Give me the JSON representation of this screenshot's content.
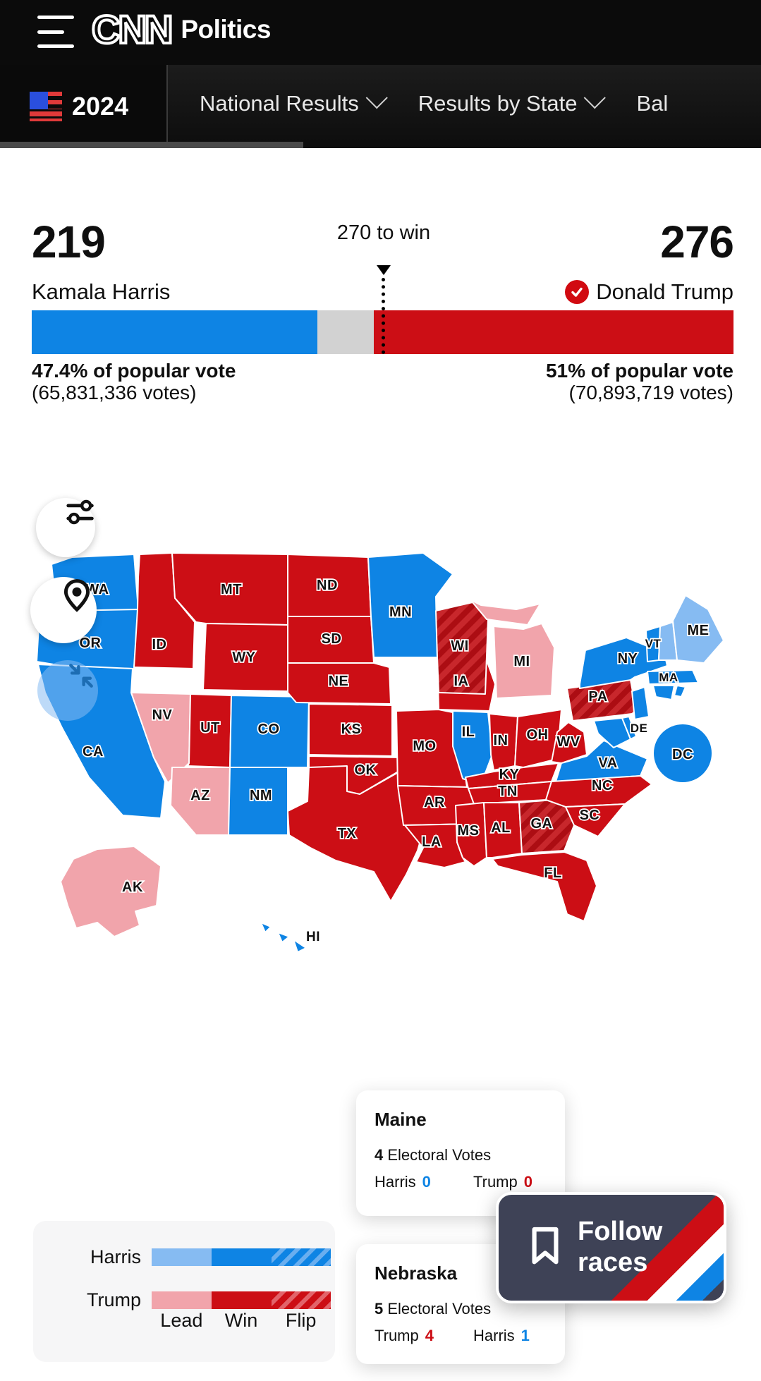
{
  "header": {
    "brand": "CNN",
    "section": "Politics"
  },
  "nav": {
    "year": "2024",
    "items": [
      {
        "label": "National Results",
        "has_dropdown": true
      },
      {
        "label": "Results by State",
        "has_dropdown": true
      },
      {
        "label": "Bal",
        "has_dropdown": false
      }
    ]
  },
  "scoreboard": {
    "threshold_label": "270 to win",
    "harris": {
      "electoral": "219",
      "name": "Kamala Harris",
      "pop_pct": "47.4% of popular vote",
      "pop_votes": "(65,831,336 votes)"
    },
    "trump": {
      "electoral": "276",
      "name": "Donald Trump",
      "winner": true,
      "pop_pct": "51% of popular vote",
      "pop_votes": "(70,893,719 votes)"
    }
  },
  "colors": {
    "dem_win": "#0e84e4",
    "dem_lead": "#86bbf2",
    "rep_win": "#cc0e15",
    "rep_lead": "#f1a4ab",
    "undecided": "#d2d2d2",
    "nav_bg": "#0d0d0d",
    "follow_btn_bg": "#3e4256"
  },
  "map": {
    "icons": [
      "filter-icon",
      "location-pin-icon",
      "collapse-icon"
    ],
    "states": [
      {
        "abbr": "WA",
        "label": "WA",
        "status": "dem-win"
      },
      {
        "abbr": "OR",
        "label": "OR",
        "status": "dem-win"
      },
      {
        "abbr": "CA",
        "label": "CA",
        "status": "dem-win"
      },
      {
        "abbr": "ID",
        "label": "ID",
        "status": "rep-win"
      },
      {
        "abbr": "NV",
        "label": "NV",
        "status": "rep-lead"
      },
      {
        "abbr": "UT",
        "label": "UT",
        "status": "rep-win"
      },
      {
        "abbr": "CO",
        "label": "CO",
        "status": "dem-win"
      },
      {
        "abbr": "AZ",
        "label": "AZ",
        "status": "rep-lead"
      },
      {
        "abbr": "NM",
        "label": "NM",
        "status": "dem-win"
      },
      {
        "abbr": "MT",
        "label": "MT",
        "status": "rep-win"
      },
      {
        "abbr": "WY",
        "label": "WY",
        "status": "rep-win"
      },
      {
        "abbr": "ND",
        "label": "ND",
        "status": "rep-win"
      },
      {
        "abbr": "SD",
        "label": "SD",
        "status": "rep-win"
      },
      {
        "abbr": "NE",
        "label": "NE",
        "status": "rep-win"
      },
      {
        "abbr": "KS",
        "label": "KS",
        "status": "rep-win"
      },
      {
        "abbr": "OK",
        "label": "OK",
        "status": "rep-win"
      },
      {
        "abbr": "TX",
        "label": "TX",
        "status": "rep-win"
      },
      {
        "abbr": "MN",
        "label": "MN",
        "status": "dem-win"
      },
      {
        "abbr": "IA",
        "label": "IA",
        "status": "rep-win"
      },
      {
        "abbr": "MO",
        "label": "MO",
        "status": "rep-win"
      },
      {
        "abbr": "AR",
        "label": "AR",
        "status": "rep-win"
      },
      {
        "abbr": "LA",
        "label": "LA",
        "status": "rep-win"
      },
      {
        "abbr": "WI",
        "label": "WI",
        "status": "rep-flip"
      },
      {
        "abbr": "IL",
        "label": "IL",
        "status": "dem-win"
      },
      {
        "abbr": "MI",
        "label": "MI",
        "status": "rep-lead"
      },
      {
        "abbr": "IN",
        "label": "IN",
        "status": "rep-win"
      },
      {
        "abbr": "OH",
        "label": "OH",
        "status": "rep-win"
      },
      {
        "abbr": "KY",
        "label": "KY",
        "status": "rep-win"
      },
      {
        "abbr": "TN",
        "label": "TN",
        "status": "rep-win"
      },
      {
        "abbr": "MS",
        "label": "MS",
        "status": "rep-win"
      },
      {
        "abbr": "AL",
        "label": "AL",
        "status": "rep-win"
      },
      {
        "abbr": "GA",
        "label": "GA",
        "status": "rep-flip"
      },
      {
        "abbr": "WV",
        "label": "WV",
        "status": "rep-win"
      },
      {
        "abbr": "VA",
        "label": "VA",
        "status": "dem-win"
      },
      {
        "abbr": "NC",
        "label": "NC",
        "status": "rep-win"
      },
      {
        "abbr": "SC",
        "label": "SC",
        "status": "rep-win"
      },
      {
        "abbr": "FL",
        "label": "FL",
        "status": "rep-win"
      },
      {
        "abbr": "PA",
        "label": "PA",
        "status": "rep-flip"
      },
      {
        "abbr": "NY",
        "label": "NY",
        "status": "dem-win"
      },
      {
        "abbr": "VT",
        "label": "VT",
        "status": "dem-win"
      },
      {
        "abbr": "NH",
        "label": "",
        "status": "dem-lead"
      },
      {
        "abbr": "ME",
        "label": "ME",
        "status": "dem-lead"
      },
      {
        "abbr": "MA",
        "label": "MA",
        "status": "dem-win"
      },
      {
        "abbr": "CT",
        "label": "",
        "status": "dem-win"
      },
      {
        "abbr": "RI",
        "label": "",
        "status": "dem-win"
      },
      {
        "abbr": "NJ",
        "label": "",
        "status": "dem-win"
      },
      {
        "abbr": "MD",
        "label": "",
        "status": "dem-win"
      },
      {
        "abbr": "DE",
        "label": "DE",
        "status": "dem-win"
      },
      {
        "abbr": "DC",
        "label": "DC",
        "status": "dem-win"
      },
      {
        "abbr": "AK",
        "label": "AK",
        "status": "rep-lead"
      },
      {
        "abbr": "HI",
        "label": "HI",
        "status": "dem-win"
      }
    ]
  },
  "tooltips": {
    "maine": {
      "title": "Maine",
      "ev_num": "4",
      "ev_text": "Electoral Votes",
      "rows": [
        {
          "name": "Harris",
          "value": "0",
          "party": "dem"
        },
        {
          "name": "Trump",
          "value": "0",
          "party": "rep"
        }
      ]
    },
    "nebraska": {
      "title": "Nebraska",
      "ev_num": "5",
      "ev_text": "Electoral Votes",
      "rows": [
        {
          "name": "Trump",
          "value": "4",
          "party": "rep"
        },
        {
          "name": "Harris",
          "value": "1",
          "party": "dem"
        }
      ]
    }
  },
  "legend": {
    "rows": [
      {
        "label": "Harris"
      },
      {
        "label": "Trump"
      }
    ],
    "categories": [
      "Lead",
      "Win",
      "Flip"
    ]
  },
  "follow_button": {
    "line1": "Follow",
    "line2": "races"
  }
}
